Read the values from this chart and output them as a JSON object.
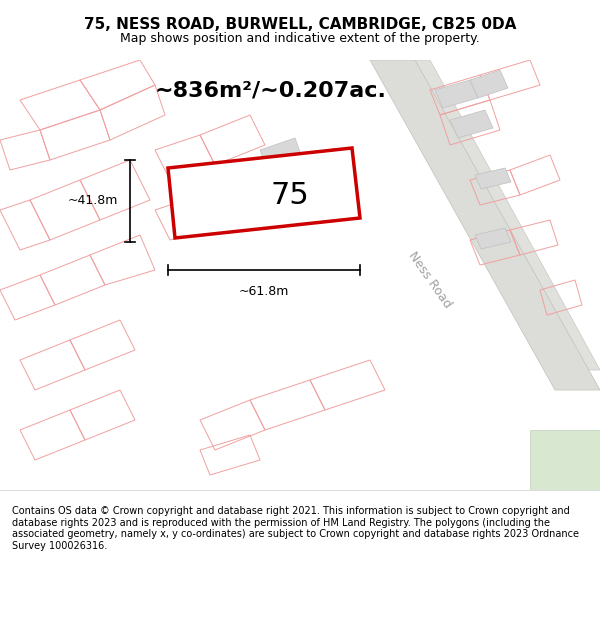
{
  "title_line1": "75, NESS ROAD, BURWELL, CAMBRIDGE, CB25 0DA",
  "title_line2": "Map shows position and indicative extent of the property.",
  "area_text": "~836m²/~0.207ac.",
  "label_75": "75",
  "dim_width": "~61.8m",
  "dim_height": "~41.8m",
  "road_label": "Ness Road",
  "footer_text": "Contains OS data © Crown copyright and database right 2021. This information is subject to Crown copyright and database rights 2023 and is reproduced with the permission of HM Land Registry. The polygons (including the associated geometry, namely x, y co-ordinates) are subject to Crown copyright and database rights 2023 Ordnance Survey 100026316.",
  "bg_color": "#f5f5f0",
  "map_bg": "#f5f5f0",
  "building_fill": "#d8d8d8",
  "building_edge": "#c0c0c0",
  "plot_edge_color": "#cc0000",
  "street_line_color": "#f0a0a0",
  "footer_bg": "white",
  "title_bg": "white",
  "green_fill": "#d8e8d0",
  "green_edge": "#c0d0b8"
}
